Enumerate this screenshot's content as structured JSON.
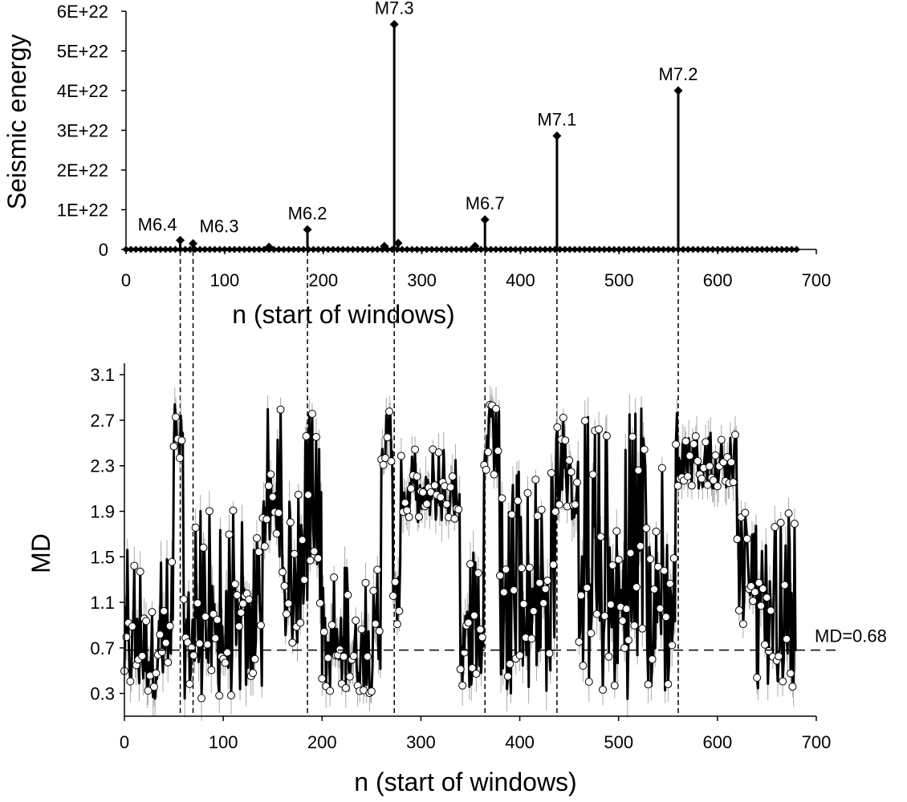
{
  "chart_data": [
    {
      "type": "line",
      "xlabel": "n (start of windows)",
      "ylabel": "Seismic energy",
      "xlim": [
        0,
        700
      ],
      "ylim": [
        0,
        6e+22
      ],
      "x_ticks": [
        0,
        100,
        200,
        300,
        400,
        500,
        600,
        700
      ],
      "y_ticks": [
        0,
        1e+22,
        2e+22,
        3e+22,
        4e+22,
        5e+22,
        6e+22
      ],
      "x_tick_labels": [
        "0",
        "100",
        "200",
        "300",
        "400",
        "500",
        "600",
        "700"
      ],
      "y_tick_labels": [
        "0",
        "1E+22",
        "2E+22",
        "3E+22",
        "4E+22",
        "5E+22",
        "6E+22"
      ],
      "marker": "diamond",
      "x_range": [
        0,
        680
      ],
      "baseline": 0,
      "peaks": [
        {
          "x": 55,
          "y": 2.3e+21,
          "label": "M6.4"
        },
        {
          "x": 68,
          "y": 1.5e+21,
          "label": "M6.3"
        },
        {
          "x": 145,
          "y": 6e+20,
          "label": ""
        },
        {
          "x": 184,
          "y": 5e+21,
          "label": "M6.2"
        },
        {
          "x": 262,
          "y": 8e+20,
          "label": ""
        },
        {
          "x": 272,
          "y": 5.67e+22,
          "label": "M7.3"
        },
        {
          "x": 276,
          "y": 1.6e+21,
          "label": ""
        },
        {
          "x": 354,
          "y": 8e+20,
          "label": ""
        },
        {
          "x": 364,
          "y": 7.5e+21,
          "label": "M6.7"
        },
        {
          "x": 437,
          "y": 2.86e+22,
          "label": "M7.1"
        },
        {
          "x": 560,
          "y": 4e+22,
          "label": "M7.2"
        }
      ]
    },
    {
      "type": "scatter",
      "xlabel": "n (start of windows)",
      "ylabel": "MD",
      "xlim": [
        0,
        700
      ],
      "ylim": [
        0.1,
        3.2
      ],
      "x_ticks": [
        0,
        100,
        200,
        300,
        400,
        500,
        600,
        700
      ],
      "y_ticks": [
        0.3,
        0.7,
        1.1,
        1.5,
        1.9,
        2.3,
        2.7,
        3.1
      ],
      "x_tick_labels": [
        "0",
        "100",
        "200",
        "300",
        "400",
        "500",
        "600",
        "700"
      ],
      "y_tick_labels": [
        "0.3",
        "0.7",
        "1.1",
        "1.5",
        "1.9",
        "2.3",
        "2.7",
        "3.1"
      ],
      "x_range": [
        0,
        680
      ],
      "marker": "open-circle",
      "error_bars": true,
      "threshold": {
        "value": 0.68,
        "label": "MD=0.68"
      },
      "event_markers_n": [
        55,
        68,
        184,
        272,
        364,
        437,
        560
      ],
      "segments": [
        {
          "from": 0,
          "to": 50,
          "low": 0.25,
          "high": 1.6
        },
        {
          "from": 50,
          "to": 60,
          "low": 2.2,
          "high": 2.85
        },
        {
          "from": 60,
          "to": 140,
          "low": 0.25,
          "high": 1.95
        },
        {
          "from": 140,
          "to": 160,
          "low": 1.5,
          "high": 2.8
        },
        {
          "from": 160,
          "to": 180,
          "low": 0.7,
          "high": 2.1
        },
        {
          "from": 180,
          "to": 200,
          "low": 1.0,
          "high": 2.9
        },
        {
          "from": 200,
          "to": 260,
          "low": 0.3,
          "high": 1.45
        },
        {
          "from": 260,
          "to": 272,
          "low": 2.3,
          "high": 2.8
        },
        {
          "from": 272,
          "to": 280,
          "low": 0.9,
          "high": 1.6
        },
        {
          "from": 280,
          "to": 340,
          "low": 1.8,
          "high": 2.5
        },
        {
          "from": 340,
          "to": 364,
          "low": 0.35,
          "high": 1.6
        },
        {
          "from": 364,
          "to": 380,
          "low": 2.2,
          "high": 2.85
        },
        {
          "from": 380,
          "to": 437,
          "low": 0.3,
          "high": 2.35
        },
        {
          "from": 437,
          "to": 460,
          "low": 1.8,
          "high": 2.75
        },
        {
          "from": 460,
          "to": 560,
          "low": 0.25,
          "high": 2.85
        },
        {
          "from": 560,
          "to": 620,
          "low": 2.1,
          "high": 2.6
        },
        {
          "from": 620,
          "to": 640,
          "low": 0.9,
          "high": 1.9
        },
        {
          "from": 640,
          "to": 680,
          "low": 0.3,
          "high": 1.95
        }
      ]
    }
  ]
}
